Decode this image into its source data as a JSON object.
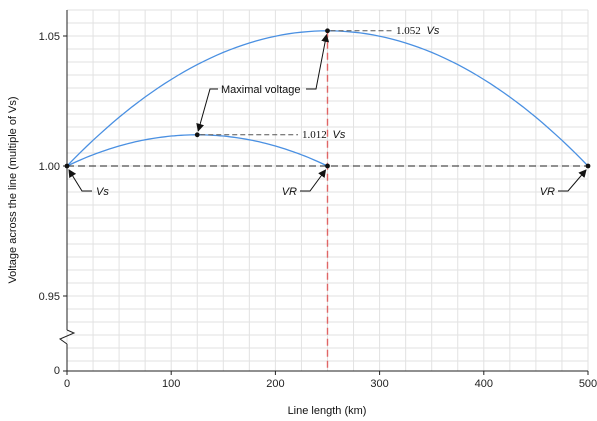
{
  "chart_data": {
    "type": "line",
    "xlabel": "Line length (km)",
    "ylabel": "Voltage across the line (multiple of Vs)",
    "xlim": [
      0,
      500
    ],
    "ylim_display": [
      0.95,
      1.055
    ],
    "axis_break": true,
    "y_zero_label": "0",
    "grid": true,
    "x_ticks": [
      {
        "value": 0,
        "label": "0"
      },
      {
        "value": 100,
        "label": "100"
      },
      {
        "value": 200,
        "label": "200"
      },
      {
        "value": 300,
        "label": "300"
      },
      {
        "value": 400,
        "label": "400"
      },
      {
        "value": 500,
        "label": "500"
      }
    ],
    "y_ticks": [
      {
        "value": 0.95,
        "label": "0.95"
      },
      {
        "value": 1.0,
        "label": "1.00"
      },
      {
        "value": 1.05,
        "label": "1.05"
      }
    ],
    "series": [
      {
        "line_length_km": 250,
        "color": "#4a90e2",
        "points": [
          [
            0,
            1.0
          ],
          [
            25,
            1.0037
          ],
          [
            50,
            1.0066
          ],
          [
            75,
            1.0086
          ],
          [
            100,
            1.0098
          ],
          [
            125,
            1.012
          ],
          [
            150,
            1.0098
          ],
          [
            175,
            1.0086
          ],
          [
            200,
            1.0066
          ],
          [
            225,
            1.0037
          ],
          [
            250,
            1.0
          ]
        ]
      },
      {
        "line_length_km": 500,
        "color": "#4a90e2",
        "points": [
          [
            0,
            1.0
          ],
          [
            50,
            1.0187
          ],
          [
            100,
            1.0333
          ],
          [
            150,
            1.0437
          ],
          [
            200,
            1.05
          ],
          [
            250,
            1.052
          ],
          [
            300,
            1.05
          ],
          [
            350,
            1.0437
          ],
          [
            400,
            1.0333
          ],
          [
            450,
            1.0187
          ],
          [
            500,
            1.0
          ]
        ]
      }
    ],
    "reference_line": {
      "y": 1.0,
      "style": "dashed",
      "color": "#222222"
    },
    "vertical_marker": {
      "x": 250,
      "style": "dashed",
      "color": "#e06666"
    },
    "annotations": {
      "max_short": {
        "x": 125,
        "y": 1.012,
        "label": "1.012",
        "unit": "Vs"
      },
      "max_long": {
        "x": 250,
        "y": 1.052,
        "label": "1.052",
        "unit": "Vs"
      },
      "maximal_voltage": {
        "label": "Maximal voltage"
      },
      "vs_label": {
        "x": 0,
        "y": 1.0,
        "label": "Vs"
      },
      "vr_short": {
        "x": 250,
        "y": 1.0,
        "label": "VR"
      },
      "vr_long": {
        "x": 500,
        "y": 1.0,
        "label": "VR"
      }
    }
  }
}
